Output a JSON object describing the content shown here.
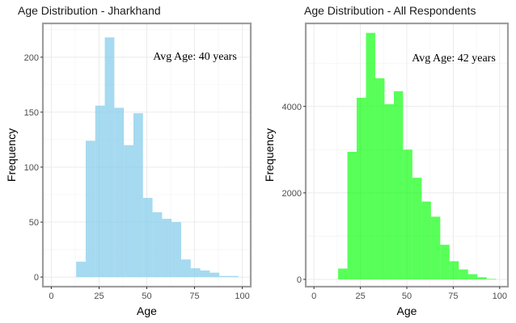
{
  "chart_data": [
    {
      "type": "bar",
      "title": "Age Distribution - Jharkhand",
      "xlabel": "Age",
      "ylabel": "Frequency",
      "annotation": "Avg Age: 40 years",
      "color": "#87ceeb",
      "xlim": [
        -4,
        104
      ],
      "ylim": [
        -8,
        230
      ],
      "x_ticks": [
        0,
        25,
        50,
        75,
        100
      ],
      "y_ticks": [
        0,
        50,
        100,
        150,
        200
      ],
      "y_tick_labels": [
        "0",
        "50",
        "100",
        "150",
        "200"
      ],
      "grid": true,
      "bin_width": 5,
      "bins": [
        {
          "x0": 13,
          "x1": 18,
          "value": 14
        },
        {
          "x0": 18,
          "x1": 23,
          "value": 124
        },
        {
          "x0": 23,
          "x1": 28,
          "value": 156
        },
        {
          "x0": 28,
          "x1": 33,
          "value": 218
        },
        {
          "x0": 33,
          "x1": 38,
          "value": 154
        },
        {
          "x0": 38,
          "x1": 43,
          "value": 120
        },
        {
          "x0": 43,
          "x1": 48,
          "value": 149
        },
        {
          "x0": 48,
          "x1": 53,
          "value": 72
        },
        {
          "x0": 53,
          "x1": 58,
          "value": 59
        },
        {
          "x0": 58,
          "x1": 63,
          "value": 53
        },
        {
          "x0": 63,
          "x1": 68,
          "value": 50
        },
        {
          "x0": 68,
          "x1": 73,
          "value": 16
        },
        {
          "x0": 73,
          "x1": 78,
          "value": 8
        },
        {
          "x0": 78,
          "x1": 83,
          "value": 6
        },
        {
          "x0": 83,
          "x1": 88,
          "value": 4
        },
        {
          "x0": 88,
          "x1": 93,
          "value": 1
        },
        {
          "x0": 93,
          "x1": 98,
          "value": 1
        }
      ]
    },
    {
      "type": "bar",
      "title": "Age Distribution - All Respondents",
      "xlabel": "Age",
      "ylabel": "Frequency",
      "annotation": "Avg Age: 42 years",
      "color": "#00ff00",
      "xlim": [
        -4,
        104
      ],
      "ylim": [
        -150,
        5900
      ],
      "x_ticks": [
        0,
        25,
        50,
        75,
        100
      ],
      "y_ticks": [
        0,
        2000,
        4000
      ],
      "y_tick_labels": [
        "0",
        "2000",
        "4000"
      ],
      "grid": true,
      "bin_width": 5,
      "bins": [
        {
          "x0": 13,
          "x1": 18,
          "value": 250
        },
        {
          "x0": 18,
          "x1": 23,
          "value": 2950
        },
        {
          "x0": 23,
          "x1": 28,
          "value": 4200
        },
        {
          "x0": 28,
          "x1": 33,
          "value": 5700
        },
        {
          "x0": 33,
          "x1": 38,
          "value": 4650
        },
        {
          "x0": 38,
          "x1": 43,
          "value": 4050
        },
        {
          "x0": 43,
          "x1": 48,
          "value": 4350
        },
        {
          "x0": 48,
          "x1": 53,
          "value": 3000
        },
        {
          "x0": 53,
          "x1": 58,
          "value": 2350
        },
        {
          "x0": 58,
          "x1": 63,
          "value": 1800
        },
        {
          "x0": 63,
          "x1": 68,
          "value": 1450
        },
        {
          "x0": 68,
          "x1": 73,
          "value": 800
        },
        {
          "x0": 73,
          "x1": 78,
          "value": 420
        },
        {
          "x0": 78,
          "x1": 83,
          "value": 230
        },
        {
          "x0": 83,
          "x1": 88,
          "value": 120
        },
        {
          "x0": 88,
          "x1": 93,
          "value": 50
        },
        {
          "x0": 93,
          "x1": 98,
          "value": 10
        }
      ]
    }
  ]
}
